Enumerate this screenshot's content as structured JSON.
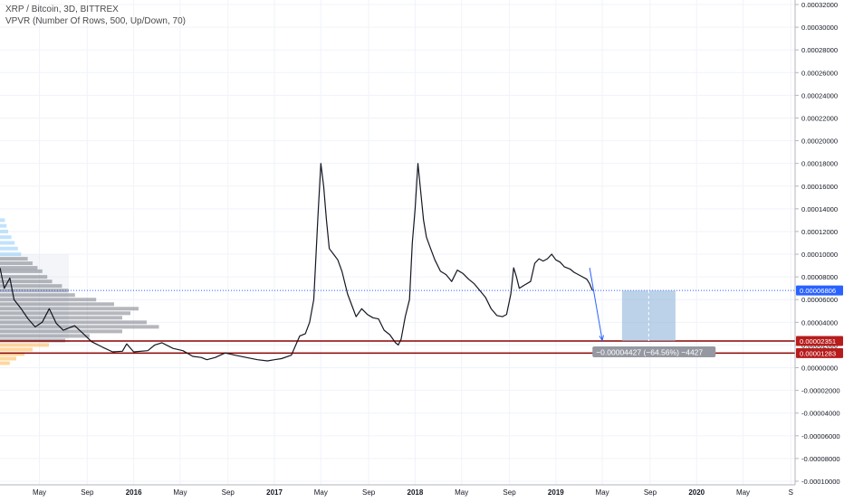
{
  "chart_data": {
    "type": "line",
    "title": "XRP / Bitcoin, 3D, BITTREX",
    "subtitle": "VPVR (Number Of Rows, 500, Up/Down, 70)",
    "y_ticks": [
      "0.00032000",
      "0.00030000",
      "0.00028000",
      "0.00026000",
      "0.00024000",
      "0.00022000",
      "0.00020000",
      "0.00018000",
      "0.00016000",
      "0.00014000",
      "0.00012000",
      "0.00010000",
      "0.00008000",
      "0.00006000",
      "0.00004000",
      "0.00002000",
      "0.00000000",
      "-0.00002000",
      "-0.00004000",
      "-0.00006000",
      "-0.00008000",
      "-0.00010000"
    ],
    "ylim": [
      -0.0001,
      0.00032
    ],
    "x_ticks": [
      {
        "label": "May",
        "t": 2015.33
      },
      {
        "label": "Sep",
        "t": 2015.67
      },
      {
        "label": "2016",
        "t": 2016.0
      },
      {
        "label": "May",
        "t": 2016.33
      },
      {
        "label": "Sep",
        "t": 2016.67
      },
      {
        "label": "2017",
        "t": 2017.0
      },
      {
        "label": "May",
        "t": 2017.33
      },
      {
        "label": "Sep",
        "t": 2017.67
      },
      {
        "label": "2018",
        "t": 2018.0
      },
      {
        "label": "May",
        "t": 2018.33
      },
      {
        "label": "Sep",
        "t": 2018.67
      },
      {
        "label": "2019",
        "t": 2019.0
      },
      {
        "label": "May",
        "t": 2019.33
      },
      {
        "label": "Sep",
        "t": 2019.67
      },
      {
        "label": "2020",
        "t": 2020.0
      },
      {
        "label": "May",
        "t": 2020.33
      },
      {
        "label": "S",
        "t": 2020.67
      }
    ],
    "xlim": [
      2015.05,
      2020.7
    ],
    "series": [
      {
        "color": "#131722",
        "points": [
          [
            2015.05,
            8.8e-05
          ],
          [
            2015.08,
            7e-05
          ],
          [
            2015.12,
            7.9e-05
          ],
          [
            2015.15,
            6e-05
          ],
          [
            2015.2,
            5.2e-05
          ],
          [
            2015.25,
            4.3e-05
          ],
          [
            2015.3,
            3.6e-05
          ],
          [
            2015.35,
            4e-05
          ],
          [
            2015.4,
            5.2e-05
          ],
          [
            2015.45,
            3.9e-05
          ],
          [
            2015.5,
            3.3e-05
          ],
          [
            2015.58,
            3.7e-05
          ],
          [
            2015.65,
            2.9e-05
          ],
          [
            2015.7,
            2.3e-05
          ],
          [
            2015.78,
            1.8e-05
          ],
          [
            2015.85,
            1.4e-05
          ],
          [
            2015.92,
            1.45e-05
          ],
          [
            2015.95,
            2.1e-05
          ],
          [
            2016.0,
            1.4e-05
          ],
          [
            2016.1,
            1.5e-05
          ],
          [
            2016.15,
            2e-05
          ],
          [
            2016.2,
            2.2e-05
          ],
          [
            2016.28,
            1.7e-05
          ],
          [
            2016.35,
            1.5e-05
          ],
          [
            2016.42,
            1e-05
          ],
          [
            2016.48,
            9e-06
          ],
          [
            2016.52,
            7e-06
          ],
          [
            2016.58,
            9e-06
          ],
          [
            2016.65,
            1.3e-05
          ],
          [
            2016.72,
            1.1e-05
          ],
          [
            2016.8,
            9e-06
          ],
          [
            2016.88,
            7e-06
          ],
          [
            2016.95,
            6e-06
          ],
          [
            2017.0,
            7e-06
          ],
          [
            2017.05,
            8e-06
          ],
          [
            2017.12,
            1.1e-05
          ],
          [
            2017.18,
            2.8e-05
          ],
          [
            2017.22,
            3e-05
          ],
          [
            2017.25,
            4e-05
          ],
          [
            2017.28,
            6e-05
          ],
          [
            2017.31,
            0.000135
          ],
          [
            2017.33,
            0.00018
          ],
          [
            2017.35,
            0.00016
          ],
          [
            2017.37,
            0.00013
          ],
          [
            2017.39,
            0.000105
          ],
          [
            2017.42,
            0.0001
          ],
          [
            2017.45,
            9.5e-05
          ],
          [
            2017.48,
            8.5e-05
          ],
          [
            2017.52,
            6.5e-05
          ],
          [
            2017.55,
            5.5e-05
          ],
          [
            2017.58,
            4.5e-05
          ],
          [
            2017.62,
            5.2e-05
          ],
          [
            2017.66,
            4.7e-05
          ],
          [
            2017.7,
            4.4e-05
          ],
          [
            2017.74,
            4.3e-05
          ],
          [
            2017.78,
            3.3e-05
          ],
          [
            2017.82,
            2.9e-05
          ],
          [
            2017.86,
            2.2e-05
          ],
          [
            2017.88,
            2e-05
          ],
          [
            2017.9,
            2.5e-05
          ],
          [
            2017.93,
            4.5e-05
          ],
          [
            2017.96,
            6e-05
          ],
          [
            2017.98,
            0.00011
          ],
          [
            2018.0,
            0.00014
          ],
          [
            2018.02,
            0.00018
          ],
          [
            2018.04,
            0.000155
          ],
          [
            2018.06,
            0.00013
          ],
          [
            2018.08,
            0.000115
          ],
          [
            2018.11,
            0.000105
          ],
          [
            2018.14,
            9.5e-05
          ],
          [
            2018.18,
            8.5e-05
          ],
          [
            2018.22,
            8.2e-05
          ],
          [
            2018.26,
            7.6e-05
          ],
          [
            2018.3,
            8.6e-05
          ],
          [
            2018.34,
            8.3e-05
          ],
          [
            2018.38,
            7.8e-05
          ],
          [
            2018.42,
            7.4e-05
          ],
          [
            2018.46,
            6.8e-05
          ],
          [
            2018.5,
            6.2e-05
          ],
          [
            2018.54,
            5.2e-05
          ],
          [
            2018.58,
            4.6e-05
          ],
          [
            2018.62,
            4.5e-05
          ],
          [
            2018.65,
            4.7e-05
          ],
          [
            2018.68,
            6.5e-05
          ],
          [
            2018.7,
            8.8e-05
          ],
          [
            2018.72,
            8e-05
          ],
          [
            2018.74,
            7e-05
          ],
          [
            2018.78,
            7.3e-05
          ],
          [
            2018.82,
            7.6e-05
          ],
          [
            2018.85,
            9.2e-05
          ],
          [
            2018.88,
            9.6e-05
          ],
          [
            2018.91,
            9.4e-05
          ],
          [
            2018.94,
            9.6e-05
          ],
          [
            2018.97,
            0.0001
          ],
          [
            2019.0,
            9.5e-05
          ],
          [
            2019.03,
            9.3e-05
          ],
          [
            2019.06,
            8.9e-05
          ],
          [
            2019.1,
            8.7e-05
          ],
          [
            2019.13,
            8.4e-05
          ],
          [
            2019.16,
            8.2e-05
          ],
          [
            2019.19,
            8e-05
          ],
          [
            2019.22,
            7.8e-05
          ],
          [
            2019.24,
            7.4e-05
          ],
          [
            2019.26,
            6.8e-05
          ]
        ]
      }
    ],
    "horizontal_lines": [
      {
        "value": 6.806e-05,
        "label": "0.00006806",
        "color": "#2962ff",
        "style": "dotted"
      },
      {
        "value": 2.351e-05,
        "label": "0.00002351",
        "color": "#8b0000",
        "style": "solid"
      },
      {
        "value": 1.283e-05,
        "label": "0.00001283",
        "color": "#8b0000",
        "style": "solid"
      }
    ],
    "projection": {
      "arrow_from": [
        2019.24,
        8.8e-05
      ],
      "arrow_to": [
        2019.33,
        2.4e-05
      ],
      "box": {
        "t0": 2019.47,
        "t1": 2019.85,
        "v0": 2.351e-05,
        "v1": 6.806e-05
      },
      "label": "−0.00004427 (−64.56%) −4427",
      "label_at": [
        2019.26,
        1.4e-05
      ]
    },
    "volume_profile": {
      "note_colors": {
        "down": "#ffb74d",
        "up": "#90caf9",
        "box": "#787b86"
      },
      "levels": [
        [
          0.00013,
          6
        ],
        [
          0.000125,
          8
        ],
        [
          0.00012,
          10
        ],
        [
          0.000115,
          14
        ],
        [
          0.00011,
          18
        ],
        [
          0.000105,
          22
        ],
        [
          0.0001,
          26
        ],
        [
          9.6e-05,
          34
        ],
        [
          9.2e-05,
          40
        ],
        [
          8.8e-05,
          46
        ],
        [
          8.5e-05,
          52
        ],
        [
          8e-05,
          58
        ],
        [
          7.6e-05,
          64
        ],
        [
          7.2e-05,
          76
        ],
        [
          6.8e-05,
          84
        ],
        [
          6.4e-05,
          92
        ],
        [
          6e-05,
          118
        ],
        [
          5.6e-05,
          140
        ],
        [
          5.2e-05,
          170
        ],
        [
          4.8e-05,
          160
        ],
        [
          4.4e-05,
          150
        ],
        [
          4e-05,
          180
        ],
        [
          3.6e-05,
          195
        ],
        [
          3.2e-05,
          150
        ],
        [
          2.8e-05,
          110
        ],
        [
          2.4e-05,
          80
        ],
        [
          2e-05,
          60
        ],
        [
          1.6e-05,
          40
        ],
        [
          1.2e-05,
          30
        ],
        [
          8e-06,
          20
        ],
        [
          4e-06,
          12
        ]
      ]
    }
  }
}
